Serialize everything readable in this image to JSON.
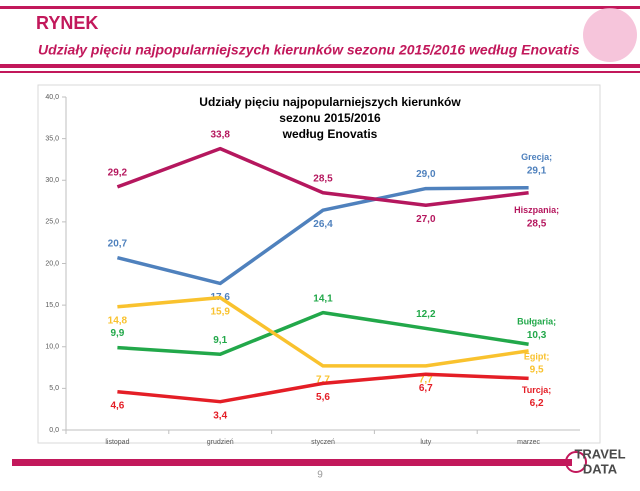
{
  "header": {
    "title": "RYNEK",
    "subtitle": "Udziały pięciu najpopularniejszych kierunków sezonu 2015/2016 według Enovatis"
  },
  "chart_data": {
    "type": "line",
    "title": [
      "Udziały pięciu najpopularniejszych kierunków",
      "sezonu 2015/2016",
      "według Enovatis"
    ],
    "categories": [
      "listopad",
      "grudzień",
      "styczeń",
      "luty",
      "marzec"
    ],
    "ylim": [
      0,
      40
    ],
    "yticks": [
      {
        "value": 0,
        "label": "0,0"
      },
      {
        "value": 5,
        "label": "5,0"
      },
      {
        "value": 10,
        "label": "10,0"
      },
      {
        "value": 15,
        "label": "15,0"
      },
      {
        "value": 20,
        "label": "20,0"
      },
      {
        "value": 25,
        "label": "25,0"
      },
      {
        "value": 30,
        "label": "30,0"
      },
      {
        "value": 35,
        "label": "35,0"
      },
      {
        "value": 40,
        "label": "40,0"
      }
    ],
    "series": [
      {
        "name": "Grecja;",
        "color": "#4f81bd",
        "values": [
          20.7,
          17.6,
          26.4,
          29.0,
          29.1
        ],
        "value_labels": [
          "20,7",
          "17,6",
          "26,4",
          "29,0",
          "29,1"
        ]
      },
      {
        "name": "Hiszpania;",
        "color": "#b5175e",
        "values": [
          29.2,
          33.8,
          28.5,
          27.0,
          28.5
        ],
        "value_labels": [
          "29,2",
          "33,8",
          "28,5",
          "27,0",
          "28,5"
        ]
      },
      {
        "name": "Bułgaria;",
        "color": "#22a84a",
        "values": [
          9.9,
          9.1,
          14.1,
          12.2,
          10.3
        ],
        "value_labels": [
          "9,9",
          "9,1",
          "14,1",
          "12,2",
          "10,3"
        ]
      },
      {
        "name": "Egipt;",
        "color": "#f9c22e",
        "values": [
          14.8,
          15.9,
          7.7,
          7.7,
          9.5
        ],
        "value_labels": [
          "14,8",
          "15,9",
          "7,7",
          "7,7",
          "9,5"
        ]
      },
      {
        "name": "Turcja;",
        "color": "#e41e26",
        "values": [
          4.6,
          3.4,
          5.6,
          6.7,
          6.2
        ],
        "value_labels": [
          "4,6",
          "3,4",
          "5,6",
          "6,7",
          "6,2"
        ]
      }
    ]
  },
  "footer": {
    "page": "9",
    "logo_top": "TRAVEL",
    "logo_bottom": "DATA"
  }
}
